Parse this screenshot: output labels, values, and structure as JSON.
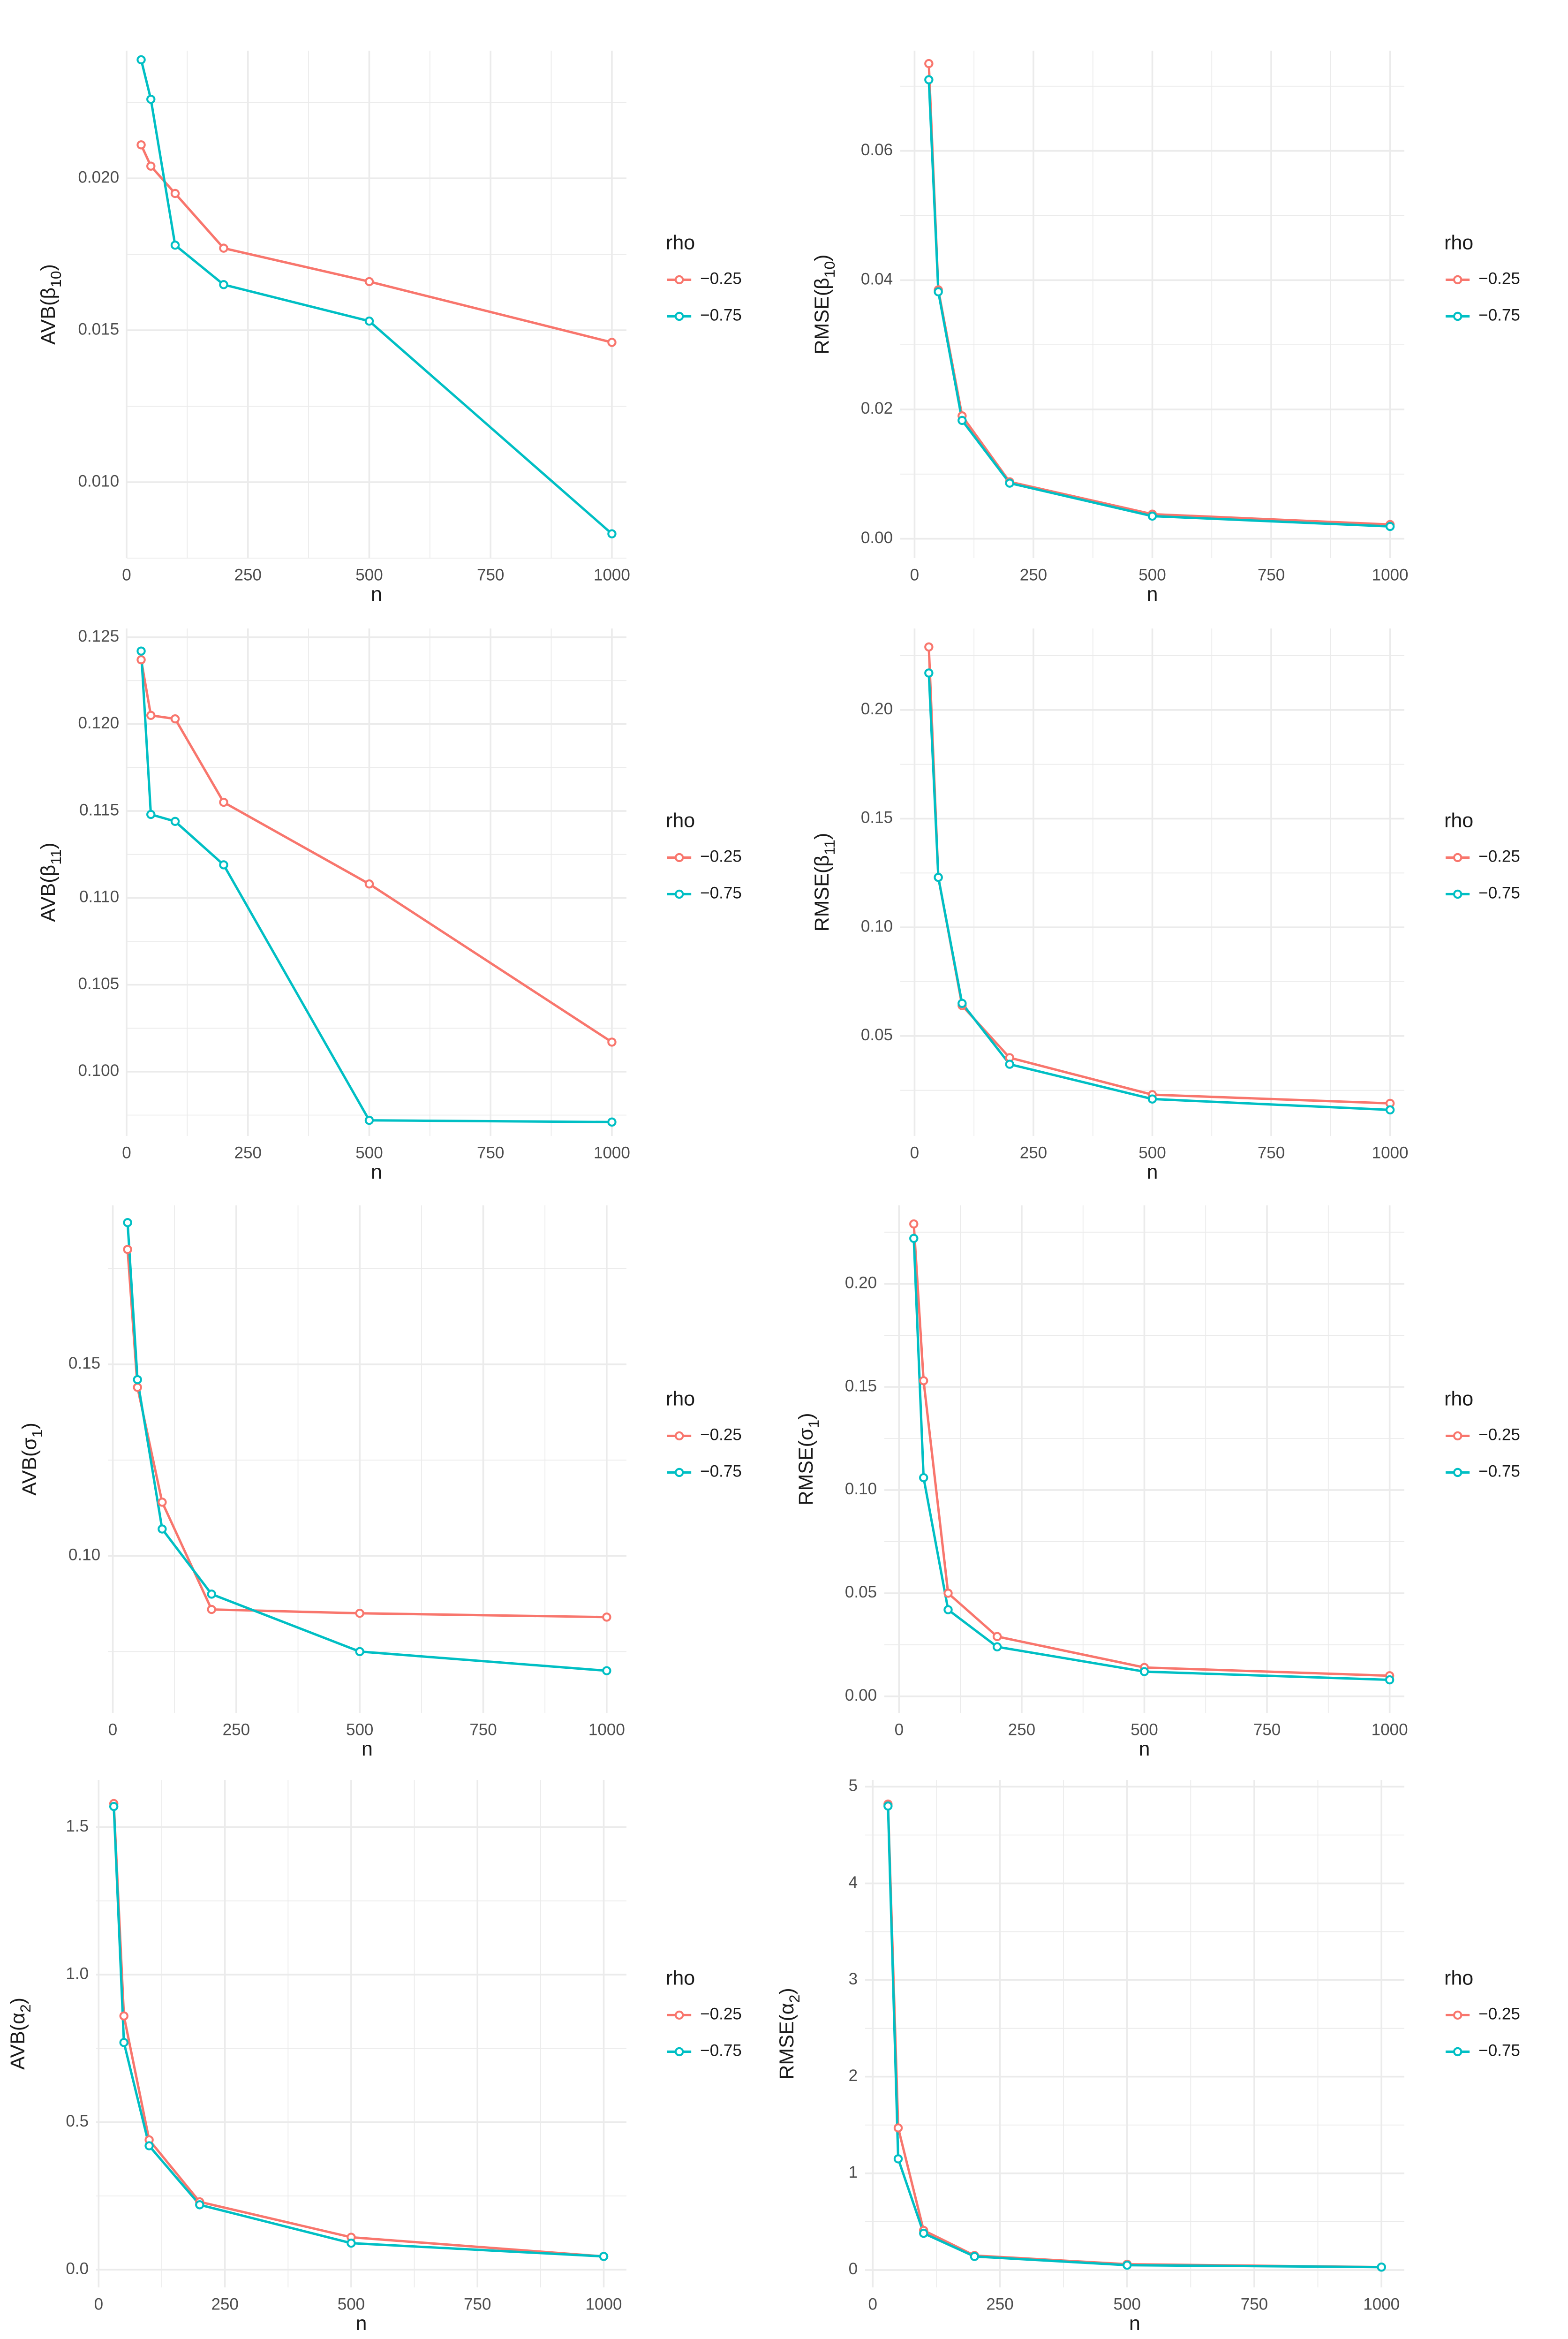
{
  "legend_title": "rho",
  "legend_labels": [
    "−0.25",
    "−0.75"
  ],
  "colors": {
    "series_a": "#F8766D",
    "series_b": "#00BFC4",
    "grid": "#EBEBEB",
    "text": "#4D4D4D",
    "title": "#1A1A1A"
  },
  "chart_data": [
    {
      "type": "line",
      "title": "",
      "xlabel": "n",
      "ylabel_main": "AVB(",
      "ylabel_hat": "β",
      "ylabel_sub": "10",
      "ylabel_close": ")",
      "x": [
        30,
        50,
        100,
        200,
        500,
        1000
      ],
      "xlim": [
        0,
        1030
      ],
      "ylim": [
        0.0075,
        0.0242
      ],
      "xticks": [
        0,
        250,
        500,
        750,
        1000
      ],
      "yticks": [
        0.01,
        0.015,
        0.02
      ],
      "ytick_decimals": 3,
      "series": [
        {
          "name": "−0.25",
          "values": [
            0.0211,
            0.0204,
            0.0195,
            0.0177,
            0.0166,
            0.0146
          ]
        },
        {
          "name": "−0.75",
          "values": [
            0.0239,
            0.0226,
            0.0178,
            0.0165,
            0.0153,
            0.0083
          ]
        }
      ]
    },
    {
      "type": "line",
      "title": "",
      "xlabel": "n",
      "ylabel_main": "RMSE(",
      "ylabel_hat": "β",
      "ylabel_sub": "10",
      "ylabel_close": ")",
      "x": [
        30,
        50,
        100,
        200,
        500,
        1000
      ],
      "xlim": [
        -30,
        1030
      ],
      "ylim": [
        -0.003,
        0.0755
      ],
      "xticks": [
        0,
        250,
        500,
        750,
        1000
      ],
      "yticks": [
        0.0,
        0.02,
        0.04,
        0.06
      ],
      "ytick_decimals": 2,
      "series": [
        {
          "name": "−0.25",
          "values": [
            0.0735,
            0.0385,
            0.019,
            0.0088,
            0.0038,
            0.0022
          ]
        },
        {
          "name": "−0.75",
          "values": [
            0.071,
            0.0382,
            0.0183,
            0.0086,
            0.0035,
            0.0019
          ]
        }
      ]
    },
    {
      "type": "line",
      "title": "",
      "xlabel": "n",
      "ylabel_main": "AVB(",
      "ylabel_hat": "β",
      "ylabel_sub": "11",
      "ylabel_close": ")",
      "x": [
        30,
        50,
        100,
        200,
        500,
        1000
      ],
      "xlim": [
        0,
        1030
      ],
      "ylim": [
        0.0963,
        0.1255
      ],
      "xticks": [
        0,
        250,
        500,
        750,
        1000
      ],
      "yticks": [
        0.1,
        0.105,
        0.11,
        0.115,
        0.12,
        0.125
      ],
      "ytick_decimals": 3,
      "series": [
        {
          "name": "−0.25",
          "values": [
            0.1237,
            0.1205,
            0.1203,
            0.1155,
            0.1108,
            0.1017
          ]
        },
        {
          "name": "−0.75",
          "values": [
            0.1242,
            0.1148,
            0.1144,
            0.1119,
            0.0972,
            0.0971
          ]
        }
      ]
    },
    {
      "type": "line",
      "title": "",
      "xlabel": "n",
      "ylabel_main": "RMSE(",
      "ylabel_hat": "β",
      "ylabel_sub": "11",
      "ylabel_close": ")",
      "x": [
        30,
        50,
        100,
        200,
        500,
        1000
      ],
      "xlim": [
        -30,
        1030
      ],
      "ylim": [
        0.004,
        0.2375
      ],
      "xticks": [
        0,
        250,
        500,
        750,
        1000
      ],
      "yticks": [
        0.05,
        0.1,
        0.15,
        0.2
      ],
      "ytick_decimals": 2,
      "series": [
        {
          "name": "−0.25",
          "values": [
            0.229,
            0.123,
            0.064,
            0.04,
            0.023,
            0.019
          ]
        },
        {
          "name": "−0.75",
          "values": [
            0.217,
            0.123,
            0.065,
            0.037,
            0.021,
            0.016
          ]
        }
      ]
    },
    {
      "type": "line",
      "title": "",
      "xlabel": "n",
      "ylabel_main": "AVB(",
      "ylabel_hat": "σ",
      "ylabel_sub": "1",
      "ylabel_close": ")",
      "x": [
        30,
        50,
        100,
        200,
        500,
        1000
      ],
      "xlim": [
        -10,
        1040
      ],
      "ylim": [
        0.059,
        0.1915
      ],
      "xticks": [
        0,
        250,
        500,
        750,
        1000
      ],
      "yticks": [
        0.1,
        0.15
      ],
      "ytick_decimals": 2,
      "series": [
        {
          "name": "−0.25",
          "values": [
            0.18,
            0.144,
            0.114,
            0.086,
            0.085,
            0.084
          ]
        },
        {
          "name": "−0.75",
          "values": [
            0.187,
            0.146,
            0.107,
            0.09,
            0.075,
            0.07
          ]
        }
      ]
    },
    {
      "type": "line",
      "title": "",
      "xlabel": "n",
      "ylabel_main": "RMSE(",
      "ylabel_hat": "σ",
      "ylabel_sub": "1",
      "ylabel_close": ")",
      "x": [
        30,
        50,
        100,
        200,
        500,
        1000
      ],
      "xlim": [
        -30,
        1030
      ],
      "ylim": [
        -0.008,
        0.238
      ],
      "xticks": [
        0,
        250,
        500,
        750,
        1000
      ],
      "yticks": [
        0.0,
        0.05,
        0.1,
        0.15,
        0.2
      ],
      "ytick_decimals": 2,
      "series": [
        {
          "name": "−0.25",
          "values": [
            0.229,
            0.153,
            0.05,
            0.029,
            0.014,
            0.01
          ]
        },
        {
          "name": "−0.75",
          "values": [
            0.222,
            0.106,
            0.042,
            0.024,
            0.012,
            0.008
          ]
        }
      ]
    },
    {
      "type": "line",
      "title": "",
      "xlabel": "n",
      "ylabel_main": "AVB(",
      "ylabel_hat": "α",
      "ylabel_sub": "2",
      "ylabel_close": ")",
      "x": [
        30,
        50,
        100,
        200,
        500,
        1000
      ],
      "xlim": [
        -5,
        1045
      ],
      "ylim": [
        -0.06,
        1.66
      ],
      "xticks": [
        0,
        250,
        500,
        750,
        1000
      ],
      "yticks": [
        0.0,
        0.5,
        1.0,
        1.5
      ],
      "ytick_decimals": 1,
      "series": [
        {
          "name": "−0.25",
          "values": [
            1.58,
            0.86,
            0.44,
            0.23,
            0.11,
            0.045
          ]
        },
        {
          "name": "−0.75",
          "values": [
            1.57,
            0.77,
            0.42,
            0.22,
            0.09,
            0.045
          ]
        }
      ]
    },
    {
      "type": "line",
      "title": "",
      "xlabel": "n",
      "ylabel_main": "RMSE(",
      "ylabel_hat": "α",
      "ylabel_sub": "2",
      "ylabel_close": ")",
      "x": [
        30,
        50,
        100,
        200,
        500,
        1000
      ],
      "xlim": [
        -15,
        1045
      ],
      "ylim": [
        -0.18,
        5.07
      ],
      "xticks": [
        0,
        250,
        500,
        750,
        1000
      ],
      "yticks": [
        0,
        1,
        2,
        3,
        4,
        5
      ],
      "ytick_decimals": 0,
      "series": [
        {
          "name": "−0.25",
          "values": [
            4.82,
            1.47,
            0.41,
            0.15,
            0.06,
            0.03
          ]
        },
        {
          "name": "−0.75",
          "values": [
            4.8,
            1.15,
            0.38,
            0.14,
            0.05,
            0.03
          ]
        }
      ]
    }
  ]
}
